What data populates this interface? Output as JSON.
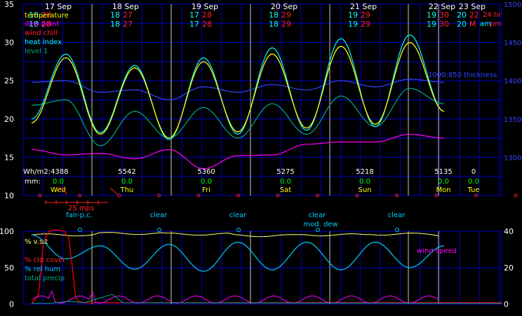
{
  "chart_data": [
    {
      "type": "line",
      "title": "",
      "days": [
        {
          "date": "17 Sep",
          "name": "Wed",
          "wh": "Wh/m2:4388",
          "mm": "0.0",
          "lo_hi": [
            [
              "18",
              "28"
            ],
            [
              "18",
              "28"
            ]
          ]
        },
        {
          "date": "18 Sep",
          "name": "Thu",
          "wh": "5542",
          "mm": "0.0",
          "lo_hi": [
            [
              "18",
              "27"
            ],
            [
              "18",
              "27"
            ]
          ]
        },
        {
          "date": "19 Sep",
          "name": "Fri",
          "wh": "5360",
          "mm": "0.0",
          "lo_hi": [
            [
              "17",
              "28"
            ],
            [
              "17",
              "28"
            ]
          ]
        },
        {
          "date": "20 Sep",
          "name": "Sat",
          "wh": "5275",
          "mm": "0.0",
          "lo_hi": [
            [
              "18",
              "29"
            ],
            [
              "18",
              "29"
            ]
          ]
        },
        {
          "date": "21 Sep",
          "name": "Sun",
          "wh": "5218",
          "mm": "0.0",
          "lo_hi": [
            [
              "19",
              "29"
            ],
            [
              "19",
              "29"
            ]
          ]
        },
        {
          "date": "22 Sep",
          "name": "Mon",
          "wh": "5135",
          "mm": "0.0",
          "lo_hi": [
            [
              "19",
              "30"
            ],
            [
              "19",
              "30"
            ]
          ]
        },
        {
          "date": "23 Sep",
          "name": "Tue",
          "wh": "0",
          "mm": "0.0",
          "lo_hi": [
            [
              "20",
              "22"
            ],
            [
              "20",
              "M"
            ]
          ]
        }
      ],
      "corner_labels": {
        "hr": "24 hr",
        "ampm_a": "am",
        "ampm_p": "pm"
      },
      "mm_label": "mm:",
      "legend": [
        "temperature",
        "dew point",
        "wind chill",
        "heat index",
        "level 1"
      ],
      "thickness_label": "1000:850 thickness",
      "wind_scale_label": "25 mps",
      "y_left": {
        "range": [
          10,
          35
        ],
        "ticks": [
          "10",
          "15",
          "20",
          "25",
          "30",
          "35"
        ]
      },
      "y_right": {
        "range": [
          1250,
          1500
        ],
        "ticks": [
          "1300",
          "1350",
          "1400",
          "1450",
          "1500"
        ]
      },
      "colors": {
        "temperature": "#ffff00",
        "dew_point": "#ff00ff",
        "wind_chill": "#ff0000",
        "heat_index": "#00ffff",
        "level1": "#00aa88",
        "thickness": "#3344ff",
        "grid": "#0000c0",
        "day_line": "#c8c8c8",
        "lo": "#00ffff",
        "hi": "#ff2222",
        "rain": "#00ff00"
      },
      "temperature_extremes": [
        19.5,
        28,
        18,
        26.7,
        17.5,
        27.5,
        18.3,
        28.5,
        18.8,
        29.5,
        19.3,
        30,
        21
      ],
      "heat_index_extremes": [
        20,
        28.5,
        18.2,
        27,
        17.3,
        28,
        18,
        29.3,
        18.5,
        30.5,
        19,
        31,
        21
      ],
      "level1_extremes": [
        21.8,
        22.5,
        16.5,
        21,
        17.5,
        21.5,
        17.5,
        22,
        18,
        23,
        19,
        24,
        22
      ],
      "dew_point_extremes": [
        16,
        15.3,
        15.5,
        14.8,
        16,
        13.5,
        15.2,
        15.3,
        16.7,
        17,
        17,
        18,
        17.5
      ],
      "thickness_extremes": [
        1398,
        1400,
        1385,
        1388,
        1375,
        1392,
        1385,
        1395,
        1388,
        1400,
        1392,
        1402,
        1398
      ]
    },
    {
      "type": "line",
      "title": "",
      "sky_labels": [
        {
          "text": "fair-p.c.",
          "day": 0
        },
        {
          "text": "clear",
          "day": 1
        },
        {
          "text": "clear",
          "day": 2
        },
        {
          "text": "clear",
          "day": 3
        },
        {
          "text": "clear",
          "day": 4
        },
        {
          "text": "mod. dew",
          "day": 3.95
        }
      ],
      "legend": [
        "% v.s.t",
        "% cld cover",
        "% rel hum",
        "total precip"
      ],
      "wind_speed_label": "wind speed",
      "y_left": {
        "range": [
          0,
          100
        ],
        "ticks": [
          "0",
          "50",
          "100"
        ]
      },
      "y_right": {
        "range": [
          0,
          40
        ],
        "ticks": [
          "0",
          "20",
          "40"
        ]
      },
      "colors": {
        "vst": "#ffff66",
        "cloud": "#ff0000",
        "rel_hum": "#00ccff",
        "precip": "#00aa88",
        "wind": "#ff00ff"
      },
      "rel_hum_extremes": [
        95,
        62,
        80,
        48,
        82,
        45,
        85,
        47,
        85,
        47,
        85,
        50,
        80
      ],
      "vst_level": [
        95,
        97,
        96,
        94,
        95,
        96,
        95
      ]
    }
  ]
}
